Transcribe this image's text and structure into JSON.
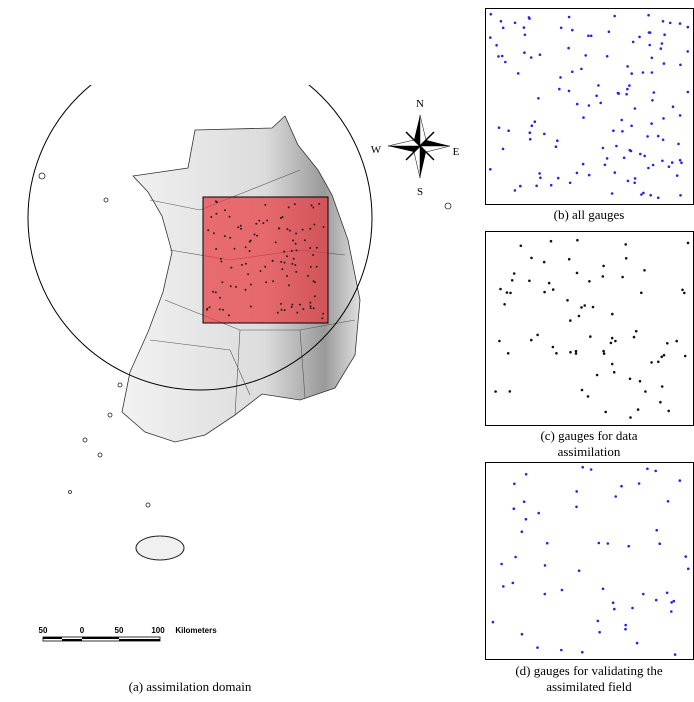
{
  "panels": {
    "a": {
      "caption": "(a) assimilation domain"
    },
    "b": {
      "caption": "(b) all gauges"
    },
    "c": {
      "caption_lines": [
        "(c) gauges for data",
        "assimilation"
      ]
    },
    "d": {
      "caption_lines": [
        "(d) gauges for validating the",
        "assimilated field"
      ]
    }
  },
  "compass": {
    "n": "N",
    "s": "S",
    "e": "E",
    "w": "W"
  },
  "scale_bar": {
    "labels": [
      "50",
      "0",
      "50",
      "100"
    ],
    "unit": "Kilometers"
  }
}
